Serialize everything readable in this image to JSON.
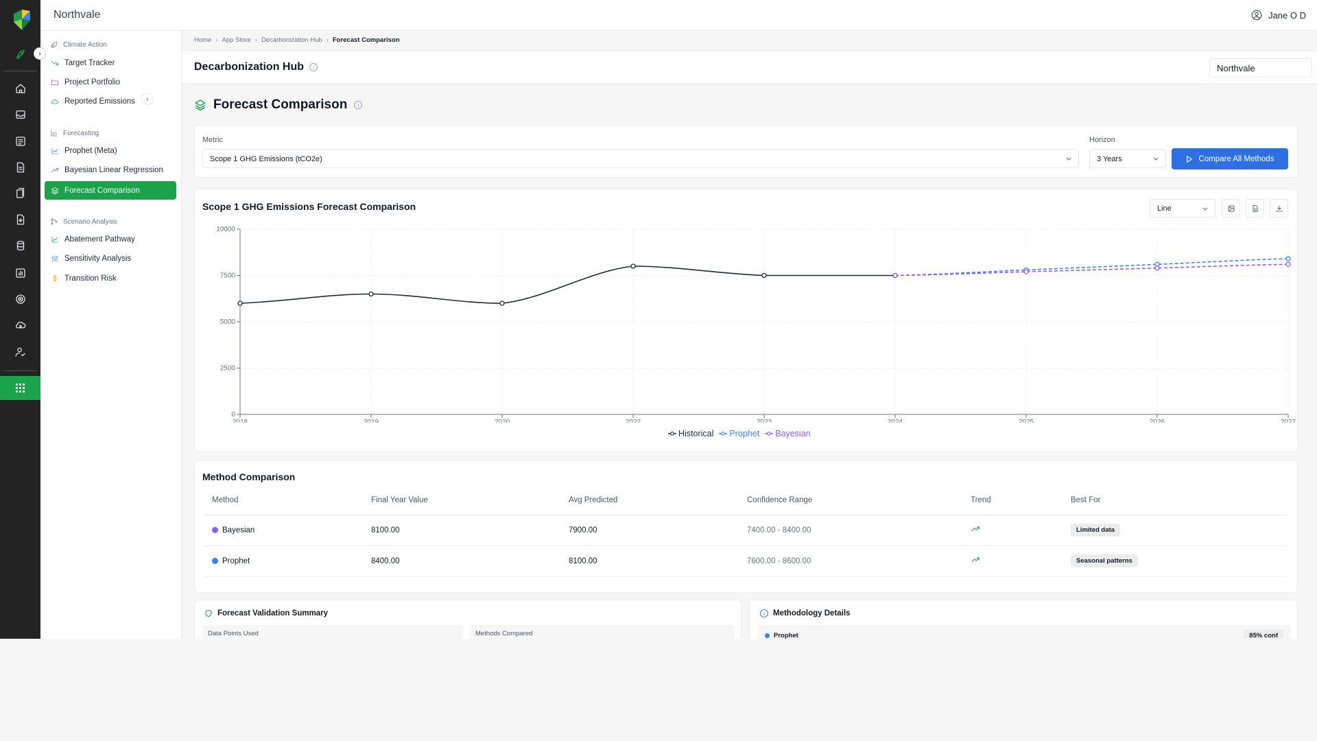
{
  "app": {
    "brand": "Northvale",
    "user": "Jane O D"
  },
  "colors": {
    "accent_green": "#1aa34a",
    "primary_blue": "#2f6fe4",
    "historical": "#1f2937",
    "prophet": "#3b82f6",
    "bayesian": "#8b5cf6"
  },
  "sidebar": {
    "groups": [
      {
        "label": "Climate Action",
        "items": [
          "Target Tracker",
          "Project Portfolio",
          "Reported Emissions"
        ]
      },
      {
        "label": "Forecasting",
        "items": [
          "Prophet (Meta)",
          "Bayesian Linear Regression",
          "Forecast Comparison"
        ]
      },
      {
        "label": "Scenario Analysis",
        "items": [
          "Abatement Pathway",
          "Sensitivity Analysis",
          "Transition Risk"
        ]
      }
    ],
    "active": "Forecast Comparison"
  },
  "breadcrumb": [
    "Home",
    "App Store",
    "Decarbonization Hub",
    "Forecast Comparison"
  ],
  "hub": {
    "title": "Decarbonization Hub",
    "org_value": "Northvale"
  },
  "page": {
    "title": "Forecast Comparison"
  },
  "controls": {
    "metric_label": "Metric",
    "metric_value": "Scope 1 GHG Emissions (tCO2e)",
    "horizon_label": "Horizon",
    "horizon_value": "3 Years",
    "compare_button": "Compare All Methods"
  },
  "chart_card": {
    "title": "Scope 1 GHG Emissions Forecast Comparison",
    "chart_type_value": "Line"
  },
  "chart_data": {
    "type": "line",
    "title": "Scope 1 GHG Emissions Forecast Comparison",
    "x": [
      "2018",
      "2019",
      "2020",
      "2022",
      "2023",
      "2024",
      "2025",
      "2026",
      "2027"
    ],
    "yticks": [
      0,
      2500,
      5000,
      7500,
      10000
    ],
    "ylim": [
      0,
      10000
    ],
    "grid": true,
    "legend_position": "bottom",
    "series": [
      {
        "name": "Historical",
        "color": "#1f2937",
        "style": "solid",
        "points": [
          [
            "2018",
            6000
          ],
          [
            "2019",
            6500
          ],
          [
            "2020",
            6000
          ],
          [
            "2022",
            8000
          ],
          [
            "2023",
            7500
          ],
          [
            "2024",
            7500
          ]
        ]
      },
      {
        "name": "Prophet",
        "color": "#3b82f6",
        "style": "dashed",
        "points": [
          [
            "2024",
            7500
          ],
          [
            "2025",
            7800
          ],
          [
            "2026",
            8100
          ],
          [
            "2027",
            8400
          ]
        ]
      },
      {
        "name": "Bayesian",
        "color": "#8b5cf6",
        "style": "dashed",
        "points": [
          [
            "2024",
            7500
          ],
          [
            "2025",
            7700
          ],
          [
            "2026",
            7900
          ],
          [
            "2027",
            8100
          ]
        ]
      }
    ]
  },
  "method_comparison": {
    "title": "Method Comparison",
    "columns": [
      "Method",
      "Final Year Value",
      "Avg Predicted",
      "Confidence Range",
      "Trend",
      "Best For"
    ],
    "rows": [
      {
        "method": "Bayesian",
        "color": "#8b5cf6",
        "final": "8100.00",
        "avg": "7900.00",
        "range": "7400.00 - 8400.00",
        "trend": "trending-up-icon",
        "best_for": "Limited data"
      },
      {
        "method": "Prophet",
        "color": "#3b82f6",
        "final": "8400.00",
        "avg": "8100.00",
        "range": "7600.00 - 8600.00",
        "trend": "trending-up-icon",
        "best_for": "Seasonal patterns"
      }
    ]
  },
  "validation": {
    "title": "Forecast Validation Summary",
    "stat1_label": "Data Points Used",
    "stat2_label": "Methods Compared"
  },
  "methodology": {
    "title": "Methodology Details",
    "item": "Prophet",
    "item_badge": "85% conf"
  }
}
